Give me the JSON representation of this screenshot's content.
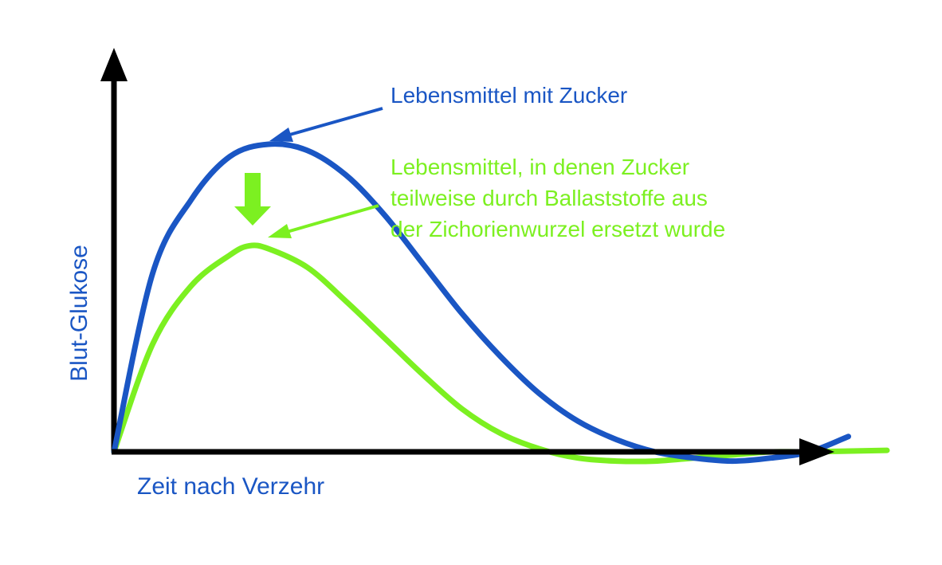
{
  "chart_data": {
    "type": "line",
    "xlabel": "Zeit nach Verzehr",
    "ylabel": "Blut-Glukose",
    "grid": false,
    "series": [
      {
        "name": "Lebensmittel mit Zucker",
        "color": "#1a56c4",
        "x": [
          0,
          5,
          10,
          15,
          20,
          25,
          30,
          35,
          40,
          45,
          50,
          55,
          60,
          65,
          70,
          75,
          80,
          85,
          90,
          95
        ],
        "y": [
          0,
          58,
          82,
          96,
          100,
          98,
          90,
          77,
          61,
          45,
          31,
          19,
          10,
          4,
          0,
          -2,
          -3,
          -2,
          0,
          5
        ]
      },
      {
        "name": "Lebensmittel, in denen Zucker teilweise durch Ballaststoffe aus der Zichorienwurzel ersetzt wurde",
        "color": "#7cf021",
        "x": [
          0,
          5,
          10,
          15,
          17.5,
          20,
          25,
          30,
          35,
          40,
          45,
          50,
          55,
          60,
          65,
          70,
          75,
          80,
          85,
          90,
          100
        ],
        "y": [
          0,
          35,
          54,
          64,
          67,
          66,
          60,
          49,
          37,
          25,
          14,
          6,
          1,
          -2,
          -3,
          -3,
          -2,
          -1,
          0,
          0,
          0.5
        ]
      }
    ]
  },
  "colors": {
    "axis": "#000000",
    "blue": "#1a56c4",
    "green": "#7cf021"
  },
  "annotations": {
    "blue_label": "Lebensmittel mit Zucker",
    "green_label_lines": [
      "Lebensmittel, in denen Zucker",
      "teilweise durch Ballaststoffe aus",
      "der Zichorienwurzel ersetzt wurde"
    ]
  }
}
